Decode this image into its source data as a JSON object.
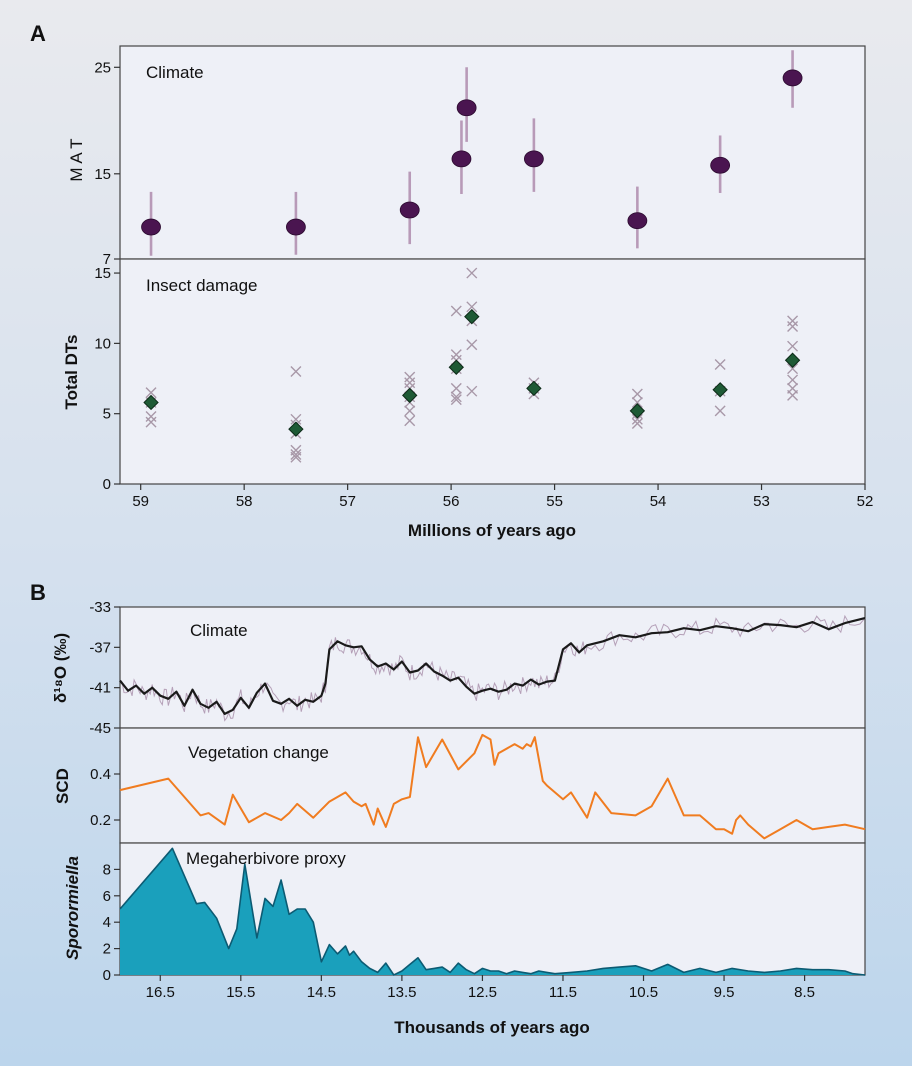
{
  "panels": {
    "a_label": "A",
    "b_label": "B"
  },
  "chart_data": [
    {
      "type": "scatter",
      "panel": "A",
      "annotation": "Climate",
      "ylabel": "M A T",
      "ylim": [
        7,
        27
      ],
      "yticks": [
        7,
        15,
        25
      ],
      "xlim": [
        59.2,
        52
      ],
      "marker_color": "#4a1550",
      "errorbar_color": "#b89ab8",
      "points": [
        {
          "x": 58.9,
          "y": 10.0,
          "lo": 7.3,
          "hi": 13.3
        },
        {
          "x": 57.5,
          "y": 10.0,
          "lo": 7.4,
          "hi": 13.3
        },
        {
          "x": 56.4,
          "y": 11.6,
          "lo": 8.4,
          "hi": 15.2
        },
        {
          "x": 55.9,
          "y": 16.4,
          "lo": 13.1,
          "hi": 20.0
        },
        {
          "x": 55.85,
          "y": 21.2,
          "lo": 18.0,
          "hi": 25.0
        },
        {
          "x": 55.2,
          "y": 16.4,
          "lo": 13.3,
          "hi": 20.2
        },
        {
          "x": 54.2,
          "y": 10.6,
          "lo": 8.0,
          "hi": 13.8
        },
        {
          "x": 53.4,
          "y": 15.8,
          "lo": 13.2,
          "hi": 18.6
        },
        {
          "x": 52.7,
          "y": 24.0,
          "lo": 21.2,
          "hi": 26.6
        }
      ]
    },
    {
      "type": "scatter",
      "panel": "A",
      "annotation": "Insect damage",
      "ylabel": "Total DTs",
      "xlabel": "Millions of years ago",
      "ylim": [
        0,
        16
      ],
      "yticks": [
        0,
        5,
        10,
        15
      ],
      "xlim": [
        59.2,
        52
      ],
      "xticks": [
        59,
        58,
        57,
        56,
        55,
        54,
        53,
        52
      ],
      "cross_color": "#a898a8",
      "diamond_color": "#1e5a35",
      "crosses": [
        {
          "x": 58.9,
          "values": [
            6.5,
            5.8,
            4.8,
            4.4
          ]
        },
        {
          "x": 57.5,
          "values": [
            8.0,
            4.6,
            4.2,
            3.6,
            2.4,
            2.1,
            1.9
          ]
        },
        {
          "x": 56.4,
          "values": [
            7.6,
            7.2,
            6.8,
            6.2,
            5.8,
            5.2,
            4.5
          ]
        },
        {
          "x": 55.95,
          "values": [
            12.3,
            9.2,
            8.8,
            8.2,
            6.8,
            6.2,
            6.0
          ]
        },
        {
          "x": 55.8,
          "values": [
            15.0,
            12.6,
            11.6,
            9.9,
            6.6
          ]
        },
        {
          "x": 55.2,
          "values": [
            7.2,
            6.8,
            6.4
          ]
        },
        {
          "x": 54.2,
          "values": [
            6.4,
            5.8,
            5.0,
            4.6,
            4.3
          ]
        },
        {
          "x": 53.4,
          "values": [
            8.5,
            6.6,
            5.2
          ]
        },
        {
          "x": 52.7,
          "values": [
            11.6,
            11.2,
            9.8,
            8.2,
            7.4,
            6.8,
            6.3
          ]
        }
      ],
      "means": [
        {
          "x": 58.9,
          "y": 5.8
        },
        {
          "x": 57.5,
          "y": 3.9
        },
        {
          "x": 56.4,
          "y": 6.3
        },
        {
          "x": 55.95,
          "y": 8.3
        },
        {
          "x": 55.8,
          "y": 11.9
        },
        {
          "x": 55.2,
          "y": 6.8
        },
        {
          "x": 54.2,
          "y": 5.2
        },
        {
          "x": 53.4,
          "y": 6.7
        },
        {
          "x": 52.7,
          "y": 8.8
        }
      ]
    },
    {
      "type": "line",
      "panel": "B",
      "annotation": "Climate",
      "ylabel": "δ¹⁸O (‰)",
      "ylim": [
        -45,
        -33
      ],
      "yticks": [
        -33,
        -37,
        -41,
        -45
      ],
      "xlim": [
        17.0,
        7.75
      ],
      "raw_color": "#b5a0b8",
      "smooth_color": "#1a1a1a",
      "series": [
        {
          "x": [
            17.0,
            16.9,
            16.8,
            16.7,
            16.6,
            16.5,
            16.4,
            16.3,
            16.2,
            16.1,
            16.0,
            15.9,
            15.8,
            15.7,
            15.6,
            15.5,
            15.4,
            15.3,
            15.2,
            15.1,
            15.0,
            14.9,
            14.8,
            14.7,
            14.6,
            14.5,
            14.45,
            14.4,
            14.3,
            14.2,
            14.1,
            14.0,
            13.9,
            13.8,
            13.7,
            13.6,
            13.5,
            13.4,
            13.3,
            13.2,
            13.1,
            13.0,
            12.9,
            12.8,
            12.7,
            12.6,
            12.5,
            12.4,
            12.3,
            12.2,
            12.1,
            12.0,
            11.9,
            11.8,
            11.7,
            11.6,
            11.5,
            11.4,
            11.3,
            11.2,
            11.0,
            10.8,
            10.6,
            10.4,
            10.2,
            10.0,
            9.8,
            9.6,
            9.4,
            9.2,
            9.0,
            8.8,
            8.6,
            8.4,
            8.2,
            8.0,
            7.75
          ],
          "values": [
            -40.3,
            -41.3,
            -40.8,
            -41.6,
            -41.0,
            -41.8,
            -42.1,
            -41.4,
            -42.8,
            -41.2,
            -42.6,
            -43.0,
            -42.4,
            -43.6,
            -43.2,
            -42.0,
            -43.0,
            -41.5,
            -40.6,
            -42.3,
            -42.6,
            -42.1,
            -42.8,
            -42.2,
            -42.4,
            -41.8,
            -40.6,
            -37.2,
            -36.4,
            -36.8,
            -37.0,
            -36.9,
            -38.2,
            -38.9,
            -38.6,
            -39.2,
            -38.4,
            -39.5,
            -39.3,
            -38.6,
            -39.4,
            -39.8,
            -40.3,
            -40.0,
            -40.9,
            -41.6,
            -41.3,
            -41.1,
            -41.4,
            -41.2,
            -40.6,
            -40.8,
            -40.2,
            -40.7,
            -40.4,
            -40.3,
            -37.2,
            -36.6,
            -37.5,
            -36.8,
            -36.4,
            -35.8,
            -36.0,
            -35.6,
            -35.5,
            -35.1,
            -35.3,
            -34.9,
            -35.1,
            -35.4,
            -34.7,
            -34.8,
            -35.0,
            -34.5,
            -35.2,
            -34.6,
            -34.1
          ]
        }
      ]
    },
    {
      "type": "line",
      "panel": "B",
      "annotation": "Vegetation change",
      "ylabel": "SCD",
      "ylim": [
        0.1,
        0.6
      ],
      "yticks": [
        0.2,
        0.4
      ],
      "xlim": [
        17.0,
        7.75
      ],
      "line_color": "#f07c20",
      "series": [
        {
          "x": [
            17.0,
            16.4,
            16.0,
            15.9,
            15.7,
            15.6,
            15.4,
            15.2,
            15.0,
            14.9,
            14.8,
            14.6,
            14.4,
            14.2,
            14.1,
            14.0,
            13.95,
            13.85,
            13.8,
            13.7,
            13.6,
            13.5,
            13.4,
            13.3,
            13.2,
            13.0,
            12.8,
            12.6,
            12.5,
            12.4,
            12.35,
            12.3,
            12.1,
            12.0,
            11.95,
            11.9,
            11.85,
            11.75,
            11.7,
            11.5,
            11.4,
            11.2,
            11.1,
            10.9,
            10.6,
            10.4,
            10.2,
            10.0,
            9.8,
            9.6,
            9.5,
            9.4,
            9.35,
            9.3,
            9.2,
            9.0,
            8.8,
            8.6,
            8.4,
            8.2,
            8.0,
            7.75
          ],
          "values": [
            0.33,
            0.38,
            0.22,
            0.23,
            0.18,
            0.31,
            0.19,
            0.23,
            0.2,
            0.23,
            0.27,
            0.21,
            0.28,
            0.32,
            0.28,
            0.26,
            0.27,
            0.18,
            0.25,
            0.17,
            0.27,
            0.29,
            0.3,
            0.56,
            0.43,
            0.55,
            0.42,
            0.49,
            0.57,
            0.55,
            0.44,
            0.49,
            0.53,
            0.51,
            0.53,
            0.52,
            0.56,
            0.37,
            0.35,
            0.29,
            0.32,
            0.21,
            0.32,
            0.23,
            0.22,
            0.26,
            0.38,
            0.22,
            0.22,
            0.16,
            0.16,
            0.14,
            0.2,
            0.22,
            0.18,
            0.12,
            0.16,
            0.2,
            0.16,
            0.17,
            0.18,
            0.16
          ]
        }
      ]
    },
    {
      "type": "area",
      "panel": "B",
      "annotation": "Megaherbivore proxy",
      "ylabel": "Sporormiella",
      "xlabel": "Thousands of years ago",
      "ylim": [
        0,
        10
      ],
      "yticks": [
        0,
        2,
        4,
        6,
        8
      ],
      "xlim": [
        17.0,
        7.75
      ],
      "xticks": [
        16.5,
        15.5,
        14.5,
        13.5,
        12.5,
        11.5,
        10.5,
        9.5,
        8.5
      ],
      "fill_color": "#1aa0bc",
      "line_color": "#0c5b73",
      "series": [
        {
          "x": [
            17.0,
            16.35,
            16.05,
            15.95,
            15.8,
            15.65,
            15.55,
            15.45,
            15.3,
            15.2,
            15.1,
            15.0,
            14.9,
            14.8,
            14.7,
            14.6,
            14.5,
            14.4,
            14.3,
            14.2,
            14.15,
            14.1,
            14.0,
            13.9,
            13.8,
            13.7,
            13.6,
            13.5,
            13.4,
            13.3,
            13.2,
            13.1,
            13.0,
            12.9,
            12.8,
            12.7,
            12.6,
            12.5,
            12.4,
            12.3,
            12.2,
            12.1,
            12.0,
            11.9,
            11.8,
            11.7,
            11.6,
            11.4,
            11.2,
            11.0,
            10.8,
            10.6,
            10.4,
            10.2,
            10.0,
            9.8,
            9.6,
            9.4,
            9.2,
            9.0,
            8.8,
            8.6,
            8.4,
            8.2,
            8.0,
            7.9,
            7.75
          ],
          "values": [
            5.0,
            9.6,
            5.4,
            5.5,
            4.3,
            2.0,
            3.5,
            8.4,
            2.8,
            5.8,
            5.2,
            7.2,
            4.6,
            5.0,
            5.0,
            4.0,
            1.0,
            2.3,
            1.6,
            2.2,
            1.5,
            1.8,
            1.0,
            0.5,
            0.2,
            0.9,
            0.0,
            0.3,
            0.8,
            1.3,
            0.4,
            0.5,
            0.6,
            0.2,
            0.9,
            0.4,
            0.1,
            0.5,
            0.3,
            0.3,
            0.1,
            0.3,
            0.2,
            0.1,
            0.3,
            0.2,
            0.1,
            0.2,
            0.3,
            0.5,
            0.6,
            0.7,
            0.3,
            0.8,
            0.2,
            0.5,
            0.2,
            0.5,
            0.3,
            0.2,
            0.3,
            0.5,
            0.4,
            0.4,
            0.3,
            0.1,
            0.0
          ]
        }
      ]
    }
  ]
}
